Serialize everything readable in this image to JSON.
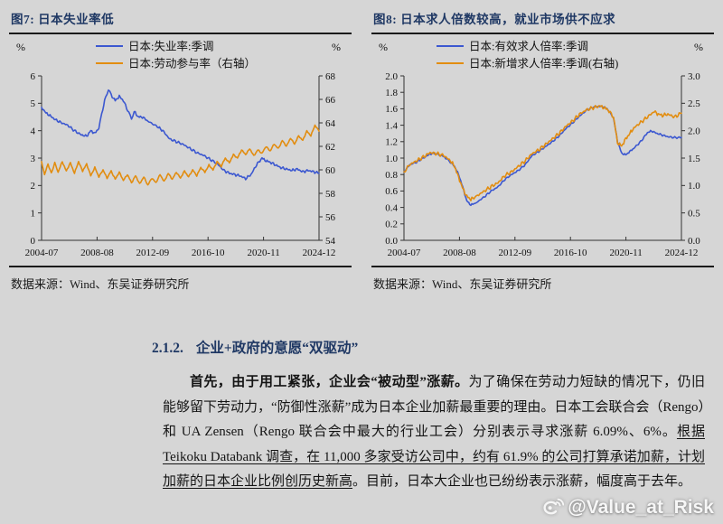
{
  "page": {
    "background": "#d6d6d6"
  },
  "figures": [
    {
      "id": "fig7",
      "title": "图7:  日本失业率低",
      "source": "数据来源：Wind、东吴证券研究所"
    },
    {
      "id": "fig8",
      "title": "图8:  日本求人倍数较高，就业市场供不应求",
      "source": "数据来源：Wind、东吴证券研究所"
    }
  ],
  "chart_data": [
    {
      "type": "line",
      "title": "日本失业率低",
      "x_domain": [
        2004.58,
        2025.0
      ],
      "x_ticks": [
        "2004-07",
        "2008-08",
        "2012-09",
        "2016-10",
        "2020-11",
        "2024-12"
      ],
      "left_axis": {
        "unit": "%",
        "min": 0,
        "max": 6,
        "tick_labels": [
          "0",
          "1",
          "2",
          "3",
          "4",
          "5",
          "6"
        ],
        "tick_values": [
          0,
          1,
          2,
          3,
          4,
          5,
          6
        ]
      },
      "right_axis": {
        "unit": "%",
        "min": 54,
        "max": 68,
        "tick_labels": [
          "54",
          "56",
          "58",
          "60",
          "62",
          "64",
          "66",
          "68"
        ],
        "tick_values": [
          54,
          56,
          58,
          60,
          62,
          64,
          66,
          68
        ]
      },
      "legend_position": "top-center",
      "grid": false,
      "series": [
        {
          "name": "日本:失业率:季调",
          "axis": "left",
          "color": "#3c58d0",
          "jitter": 0.05,
          "points": [
            [
              2004.58,
              4.85
            ],
            [
              2004.9,
              4.65
            ],
            [
              2005.2,
              4.55
            ],
            [
              2005.6,
              4.4
            ],
            [
              2006.0,
              4.3
            ],
            [
              2006.5,
              4.2
            ],
            [
              2007.0,
              4.0
            ],
            [
              2007.5,
              3.85
            ],
            [
              2007.9,
              3.8
            ],
            [
              2008.2,
              4.0
            ],
            [
              2008.5,
              3.9
            ],
            [
              2008.8,
              4.1
            ],
            [
              2009.0,
              4.6
            ],
            [
              2009.3,
              5.25
            ],
            [
              2009.5,
              5.5
            ],
            [
              2009.7,
              5.3
            ],
            [
              2010.0,
              5.1
            ],
            [
              2010.3,
              5.25
            ],
            [
              2010.6,
              5.1
            ],
            [
              2011.0,
              4.65
            ],
            [
              2011.2,
              4.45
            ],
            [
              2011.4,
              4.7
            ],
            [
              2011.7,
              4.5
            ],
            [
              2012.0,
              4.5
            ],
            [
              2012.4,
              4.35
            ],
            [
              2012.75,
              4.25
            ],
            [
              2013.1,
              4.15
            ],
            [
              2013.5,
              4.0
            ],
            [
              2014.0,
              3.7
            ],
            [
              2014.5,
              3.6
            ],
            [
              2015.0,
              3.5
            ],
            [
              2015.5,
              3.35
            ],
            [
              2016.0,
              3.2
            ],
            [
              2016.5,
              3.1
            ],
            [
              2017.0,
              2.95
            ],
            [
              2017.5,
              2.8
            ],
            [
              2018.0,
              2.55
            ],
            [
              2018.4,
              2.45
            ],
            [
              2018.8,
              2.4
            ],
            [
              2019.2,
              2.35
            ],
            [
              2019.6,
              2.25
            ],
            [
              2020.0,
              2.4
            ],
            [
              2020.4,
              2.75
            ],
            [
              2020.8,
              3.0
            ],
            [
              2021.1,
              2.9
            ],
            [
              2021.4,
              2.85
            ],
            [
              2021.8,
              2.75
            ],
            [
              2022.2,
              2.65
            ],
            [
              2022.6,
              2.6
            ],
            [
              2023.0,
              2.55
            ],
            [
              2023.4,
              2.6
            ],
            [
              2023.8,
              2.5
            ],
            [
              2024.2,
              2.55
            ],
            [
              2024.6,
              2.5
            ],
            [
              2025.0,
              2.45
            ]
          ]
        },
        {
          "name": "日本:劳动参与率（右轴）",
          "axis": "right",
          "color": "#e28d10",
          "jitter": 0.06,
          "points": [
            [
              2004.58,
              60.7
            ],
            [
              2004.8,
              59.6
            ],
            [
              2005.05,
              60.5
            ],
            [
              2005.3,
              59.7
            ],
            [
              2005.55,
              60.6
            ],
            [
              2005.8,
              59.8
            ],
            [
              2006.1,
              60.7
            ],
            [
              2006.4,
              59.9
            ],
            [
              2006.7,
              60.6
            ],
            [
              2007.0,
              59.7
            ],
            [
              2007.3,
              60.7
            ],
            [
              2007.6,
              59.9
            ],
            [
              2007.9,
              60.5
            ],
            [
              2008.2,
              59.5
            ],
            [
              2008.5,
              60.2
            ],
            [
              2008.8,
              59.4
            ],
            [
              2009.1,
              60.0
            ],
            [
              2009.4,
              59.3
            ],
            [
              2009.7,
              59.9
            ],
            [
              2010.0,
              59.2
            ],
            [
              2010.3,
              59.8
            ],
            [
              2010.6,
              59.1
            ],
            [
              2010.9,
              59.6
            ],
            [
              2011.2,
              58.9
            ],
            [
              2011.5,
              59.5
            ],
            [
              2011.8,
              58.8
            ],
            [
              2012.1,
              59.4
            ],
            [
              2012.4,
              58.7
            ],
            [
              2012.7,
              59.3
            ],
            [
              2013.0,
              58.9
            ],
            [
              2013.3,
              59.6
            ],
            [
              2013.6,
              59.0
            ],
            [
              2013.9,
              59.7
            ],
            [
              2014.2,
              59.2
            ],
            [
              2014.5,
              59.8
            ],
            [
              2014.8,
              59.3
            ],
            [
              2015.1,
              59.9
            ],
            [
              2015.4,
              59.4
            ],
            [
              2015.7,
              60.0
            ],
            [
              2016.0,
              59.5
            ],
            [
              2016.3,
              60.2
            ],
            [
              2016.6,
              59.8
            ],
            [
              2016.9,
              60.4
            ],
            [
              2017.2,
              60.0
            ],
            [
              2017.5,
              60.7
            ],
            [
              2017.8,
              60.3
            ],
            [
              2018.1,
              61.0
            ],
            [
              2018.4,
              60.6
            ],
            [
              2018.7,
              61.3
            ],
            [
              2019.0,
              61.0
            ],
            [
              2019.3,
              61.7
            ],
            [
              2019.6,
              61.3
            ],
            [
              2019.9,
              61.8
            ],
            [
              2020.2,
              61.2
            ],
            [
              2020.5,
              61.7
            ],
            [
              2020.8,
              61.4
            ],
            [
              2021.1,
              62.0
            ],
            [
              2021.4,
              61.6
            ],
            [
              2021.7,
              62.2
            ],
            [
              2022.0,
              61.8
            ],
            [
              2022.3,
              62.5
            ],
            [
              2022.6,
              62.0
            ],
            [
              2022.9,
              62.7
            ],
            [
              2023.2,
              62.2
            ],
            [
              2023.5,
              62.9
            ],
            [
              2023.8,
              62.5
            ],
            [
              2024.1,
              63.3
            ],
            [
              2024.4,
              62.9
            ],
            [
              2024.7,
              63.8
            ],
            [
              2025.0,
              63.3
            ]
          ]
        }
      ]
    },
    {
      "type": "line",
      "title": "日本求人倍数较高，就业市场供不应求",
      "x_domain": [
        2004.58,
        2025.0
      ],
      "x_ticks": [
        "2004-07",
        "2008-08",
        "2012-09",
        "2016-10",
        "2020-11",
        "2024-12"
      ],
      "left_axis": {
        "unit": "%",
        "min": 0,
        "max": 2.0,
        "tick_labels": [
          "0.0",
          "0.2",
          "0.4",
          "0.6",
          "0.8",
          "1.0",
          "1.2",
          "1.4",
          "1.6",
          "1.8",
          "2.0"
        ],
        "tick_values": [
          0,
          0.2,
          0.4,
          0.6,
          0.8,
          1.0,
          1.2,
          1.4,
          1.6,
          1.8,
          2.0
        ]
      },
      "right_axis": {
        "unit": "%",
        "min": 0,
        "max": 3.0,
        "tick_labels": [
          "0.0",
          "0.5",
          "1.0",
          "1.5",
          "2.0",
          "2.5",
          "3.0"
        ],
        "tick_values": [
          0,
          0.5,
          1.0,
          1.5,
          2.0,
          2.5,
          3.0
        ]
      },
      "legend_position": "top-center",
      "grid": false,
      "series": [
        {
          "name": "日本:有效求人倍率:季调",
          "axis": "left",
          "color": "#3c58d0",
          "jitter": 0.012,
          "points": [
            [
              2004.58,
              0.83
            ],
            [
              2005.0,
              0.92
            ],
            [
              2005.5,
              0.95
            ],
            [
              2006.0,
              1.0
            ],
            [
              2006.5,
              1.05
            ],
            [
              2006.8,
              1.06
            ],
            [
              2007.0,
              1.05
            ],
            [
              2007.5,
              1.02
            ],
            [
              2007.8,
              0.98
            ],
            [
              2008.0,
              0.95
            ],
            [
              2008.3,
              0.9
            ],
            [
              2008.6,
              0.8
            ],
            [
              2008.9,
              0.65
            ],
            [
              2009.2,
              0.48
            ],
            [
              2009.5,
              0.43
            ],
            [
              2009.8,
              0.45
            ],
            [
              2010.0,
              0.47
            ],
            [
              2010.5,
              0.53
            ],
            [
              2011.0,
              0.6
            ],
            [
              2011.5,
              0.65
            ],
            [
              2012.0,
              0.74
            ],
            [
              2012.5,
              0.8
            ],
            [
              2013.0,
              0.85
            ],
            [
              2013.5,
              0.92
            ],
            [
              2014.0,
              1.03
            ],
            [
              2014.5,
              1.08
            ],
            [
              2015.0,
              1.14
            ],
            [
              2015.5,
              1.2
            ],
            [
              2016.0,
              1.27
            ],
            [
              2016.5,
              1.36
            ],
            [
              2017.0,
              1.43
            ],
            [
              2017.5,
              1.51
            ],
            [
              2018.0,
              1.58
            ],
            [
              2018.5,
              1.62
            ],
            [
              2019.0,
              1.63
            ],
            [
              2019.3,
              1.62
            ],
            [
              2019.6,
              1.59
            ],
            [
              2020.0,
              1.49
            ],
            [
              2020.3,
              1.2
            ],
            [
              2020.6,
              1.06
            ],
            [
              2020.9,
              1.04
            ],
            [
              2021.2,
              1.08
            ],
            [
              2021.5,
              1.12
            ],
            [
              2022.0,
              1.2
            ],
            [
              2022.5,
              1.31
            ],
            [
              2022.8,
              1.33
            ],
            [
              2023.2,
              1.3
            ],
            [
              2023.6,
              1.28
            ],
            [
              2024.0,
              1.26
            ],
            [
              2024.5,
              1.25
            ],
            [
              2025.0,
              1.25
            ]
          ]
        },
        {
          "name": "日本:新增求人倍率:季调(右轴)",
          "axis": "right",
          "color": "#e28d10",
          "jitter": 0.035,
          "points": [
            [
              2004.58,
              1.25
            ],
            [
              2005.0,
              1.38
            ],
            [
              2005.5,
              1.45
            ],
            [
              2006.0,
              1.52
            ],
            [
              2006.5,
              1.6
            ],
            [
              2007.0,
              1.58
            ],
            [
              2007.5,
              1.55
            ],
            [
              2008.0,
              1.45
            ],
            [
              2008.3,
              1.35
            ],
            [
              2008.6,
              1.15
            ],
            [
              2008.9,
              0.95
            ],
            [
              2009.2,
              0.8
            ],
            [
              2009.5,
              0.75
            ],
            [
              2009.8,
              0.78
            ],
            [
              2010.0,
              0.82
            ],
            [
              2010.5,
              0.9
            ],
            [
              2011.0,
              0.98
            ],
            [
              2011.5,
              1.05
            ],
            [
              2012.0,
              1.18
            ],
            [
              2012.5,
              1.25
            ],
            [
              2013.0,
              1.35
            ],
            [
              2013.5,
              1.45
            ],
            [
              2014.0,
              1.58
            ],
            [
              2014.5,
              1.65
            ],
            [
              2015.0,
              1.75
            ],
            [
              2015.5,
              1.85
            ],
            [
              2016.0,
              1.95
            ],
            [
              2016.5,
              2.08
            ],
            [
              2017.0,
              2.18
            ],
            [
              2017.5,
              2.3
            ],
            [
              2018.0,
              2.38
            ],
            [
              2018.5,
              2.42
            ],
            [
              2019.0,
              2.45
            ],
            [
              2019.3,
              2.42
            ],
            [
              2019.6,
              2.38
            ],
            [
              2020.0,
              2.25
            ],
            [
              2020.3,
              1.78
            ],
            [
              2020.6,
              1.72
            ],
            [
              2020.9,
              1.85
            ],
            [
              2021.2,
              1.95
            ],
            [
              2021.5,
              2.05
            ],
            [
              2022.0,
              2.15
            ],
            [
              2022.5,
              2.25
            ],
            [
              2023.0,
              2.35
            ],
            [
              2023.3,
              2.3
            ],
            [
              2023.6,
              2.28
            ],
            [
              2024.0,
              2.3
            ],
            [
              2024.5,
              2.25
            ],
            [
              2025.0,
              2.32
            ]
          ]
        }
      ]
    }
  ],
  "section": {
    "number": "2.1.2.",
    "title": "企业+政府的意愿“双驱动”"
  },
  "paragraph": {
    "segments": [
      {
        "text": "首先，由于用工紧张，企业会“被动型”涨薪。",
        "bold": true,
        "underline": false
      },
      {
        "text": "为了确保在劳动力短缺的情况下，仍旧能够留下劳动力，“防御性涨薪”成为日本企业加薪最重要的理由。日本工会联合会（Rengo）和 UA Zensen（Rengo 联合会中最大的行业工会）分别表示寻求涨薪 6.09%、6%。",
        "bold": false,
        "underline": false
      },
      {
        "text": "根据 Teikoku Databank 调查，在 11,000 多家受访公司中，约有 61.9% 的公司打算承诺加薪，计划加薪的日本企业比例创历史新高",
        "bold": false,
        "underline": true
      },
      {
        "text": "。目前，日本大企业也已纷纷表示涨薪，幅度高于去年。",
        "bold": false,
        "underline": false
      }
    ]
  },
  "watermark": {
    "text": "@Value_at_Risk"
  }
}
